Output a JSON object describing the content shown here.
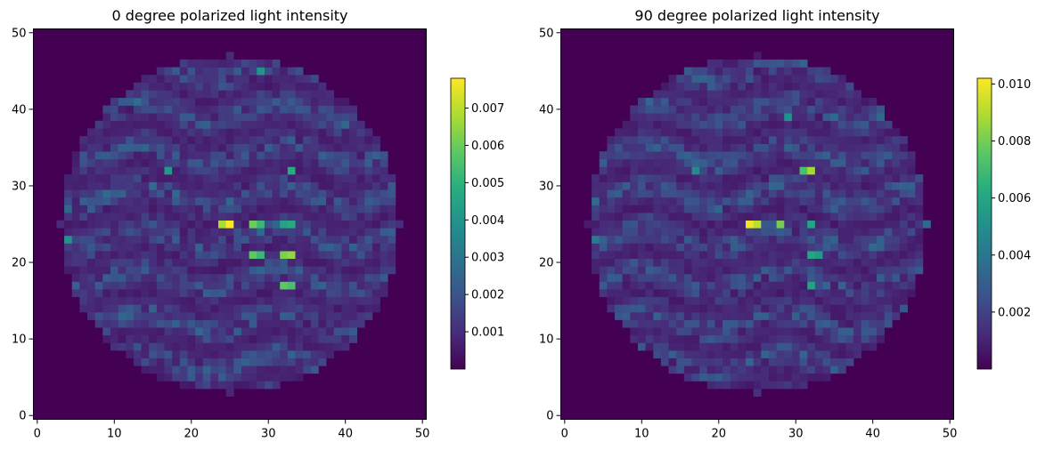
{
  "chart_data": [
    {
      "type": "heatmap",
      "title": "0 degree polarized light intensity",
      "grid_size": [
        51,
        51
      ],
      "xlim": [
        -0.5,
        50.5
      ],
      "ylim": [
        -0.5,
        50.5
      ],
      "xticks": [
        0,
        10,
        20,
        30,
        40,
        50
      ],
      "yticks": [
        0,
        10,
        20,
        30,
        40,
        50
      ],
      "colormap": "viridis",
      "colorbar": {
        "min": 0.0,
        "max": 0.0078,
        "ticks": [
          0.001,
          0.002,
          0.003,
          0.004,
          0.005,
          0.006,
          0.007
        ],
        "tick_labels": [
          "0.001",
          "0.002",
          "0.003",
          "0.004",
          "0.005",
          "0.006",
          "0.007"
        ]
      },
      "aperture": {
        "center": [
          25,
          25
        ],
        "radius": 22
      },
      "hotspots": [
        {
          "x": 25,
          "y": 25,
          "value": 0.0078
        },
        {
          "x": 24,
          "y": 25,
          "value": 0.0068
        },
        {
          "x": 28,
          "y": 25,
          "value": 0.006
        },
        {
          "x": 29,
          "y": 25,
          "value": 0.0052
        },
        {
          "x": 32,
          "y": 25,
          "value": 0.0045
        },
        {
          "x": 33,
          "y": 25,
          "value": 0.0047
        },
        {
          "x": 28,
          "y": 21,
          "value": 0.0058
        },
        {
          "x": 29,
          "y": 21,
          "value": 0.0052
        },
        {
          "x": 32,
          "y": 21,
          "value": 0.0062
        },
        {
          "x": 33,
          "y": 21,
          "value": 0.0065
        },
        {
          "x": 32,
          "y": 17,
          "value": 0.0058
        },
        {
          "x": 33,
          "y": 17,
          "value": 0.0055
        },
        {
          "x": 33,
          "y": 32,
          "value": 0.0048
        },
        {
          "x": 17,
          "y": 32,
          "value": 0.0042
        },
        {
          "x": 29,
          "y": 45,
          "value": 0.004
        },
        {
          "x": 4,
          "y": 23,
          "value": 0.004
        }
      ]
    },
    {
      "type": "heatmap",
      "title": "90 degree polarized light intensity",
      "grid_size": [
        51,
        51
      ],
      "xlim": [
        -0.5,
        50.5
      ],
      "ylim": [
        -0.5,
        50.5
      ],
      "xticks": [
        0,
        10,
        20,
        30,
        40,
        50
      ],
      "yticks": [
        0,
        10,
        20,
        30,
        40,
        50
      ],
      "colormap": "viridis",
      "colorbar": {
        "min": 0.0,
        "max": 0.0102,
        "ticks": [
          0.002,
          0.004,
          0.006,
          0.008,
          0.01
        ],
        "tick_labels": [
          "0.002",
          "0.004",
          "0.006",
          "0.008",
          "0.010"
        ]
      },
      "aperture": {
        "center": [
          25,
          25
        ],
        "radius": 22
      },
      "hotspots": [
        {
          "x": 24,
          "y": 25,
          "value": 0.01
        },
        {
          "x": 25,
          "y": 25,
          "value": 0.0092
        },
        {
          "x": 28,
          "y": 25,
          "value": 0.008
        },
        {
          "x": 32,
          "y": 32,
          "value": 0.0088
        },
        {
          "x": 31,
          "y": 32,
          "value": 0.0072
        },
        {
          "x": 32,
          "y": 25,
          "value": 0.006
        },
        {
          "x": 32,
          "y": 21,
          "value": 0.006
        },
        {
          "x": 33,
          "y": 21,
          "value": 0.0055
        },
        {
          "x": 32,
          "y": 17,
          "value": 0.0058
        },
        {
          "x": 29,
          "y": 39,
          "value": 0.0052
        },
        {
          "x": 17,
          "y": 32,
          "value": 0.0048
        },
        {
          "x": 4,
          "y": 23,
          "value": 0.0042
        }
      ]
    }
  ]
}
